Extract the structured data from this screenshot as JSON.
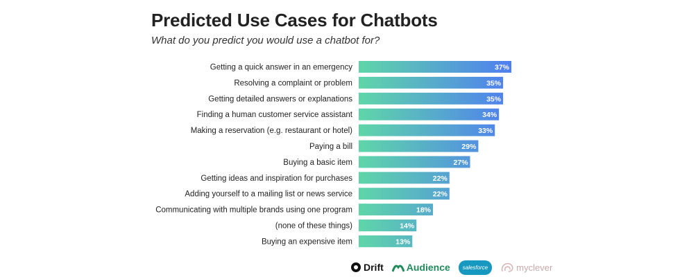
{
  "title": "Predicted Use Cases for Chatbots",
  "subtitle": "What do you predict you would use a chatbot for?",
  "chart_data": {
    "type": "bar",
    "orientation": "horizontal",
    "categories": [
      "Getting a quick answer in an emergency",
      "Resolving a complaint or problem",
      "Getting detailed answers or explanations",
      "Finding a human customer service assistant",
      "Making a reservation (e.g. restaurant or hotel)",
      "Paying a bill",
      "Buying a basic item",
      "Getting ideas and inspiration for purchases",
      "Adding yourself to a mailing list or news service",
      "Communicating with multiple brands using one program",
      "(none of these things)",
      "Buying an expensive item"
    ],
    "values": [
      37,
      35,
      35,
      34,
      33,
      29,
      27,
      22,
      22,
      18,
      14,
      13
    ],
    "value_labels": [
      "37%",
      "35%",
      "35%",
      "34%",
      "33%",
      "29%",
      "27%",
      "22%",
      "22%",
      "18%",
      "14%",
      "13%"
    ],
    "unit": "%",
    "xlim": [
      0,
      37
    ],
    "grid": false,
    "colors": {
      "gradient_start": "#5fd6a8",
      "gradient_end": "#4f7ef0",
      "label": "#ffffff"
    }
  },
  "logos": {
    "drift": "Drift",
    "audience": "Audience",
    "salesforce": "salesforce",
    "myclever": "myclever"
  }
}
